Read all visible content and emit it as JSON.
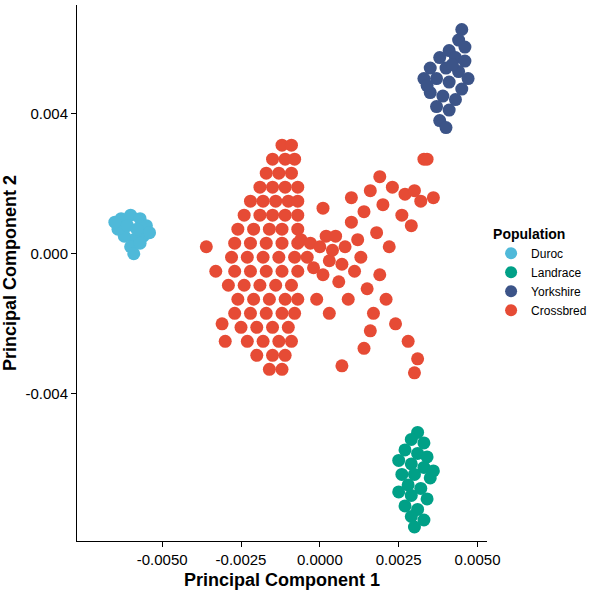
{
  "chart_data": {
    "type": "scatter",
    "x_label": "Principal Component 1",
    "y_label": "Principal Component 2",
    "legend_title": "Population",
    "legend": "right",
    "grid": false,
    "marker": "circle",
    "xlim": [
      -0.0077,
      0.0053
    ],
    "ylim": [
      -0.0082,
      0.0071
    ],
    "xticks": [
      {
        "value": -0.005,
        "label": "-0.0050"
      },
      {
        "value": -0.0025,
        "label": "-0.0025"
      },
      {
        "value": 0,
        "label": "0.0000"
      },
      {
        "value": 0.0025,
        "label": "0.0025"
      },
      {
        "value": 0.005,
        "label": "0.0050"
      }
    ],
    "yticks": [
      {
        "value": -0.004,
        "label": "-0.004"
      },
      {
        "value": 0,
        "label": "0.000"
      },
      {
        "value": 0.004,
        "label": "0.004"
      }
    ],
    "series": [
      {
        "name": "Duroc",
        "color": "#4fb9d9",
        "x": [
          -0.0063,
          -0.006,
          -0.0057,
          -0.0055,
          -0.0056,
          -0.0059,
          -0.0062,
          -0.0064,
          -0.0061,
          -0.0058,
          -0.006,
          -0.0059,
          -0.0054,
          -0.0065,
          -0.0057
        ],
        "y": [
          0.001,
          0.0011,
          0.001,
          0.0008,
          0.0005,
          0.0004,
          0.0005,
          0.0007,
          0.0008,
          0.0007,
          0.0002,
          0.0,
          0.0006,
          0.0009,
          0.0003
        ]
      },
      {
        "name": "Landrace",
        "color": "#00a087",
        "x": [
          0.0031,
          0.0029,
          0.0033,
          0.0027,
          0.0031,
          0.0034,
          0.0025,
          0.0029,
          0.0033,
          0.0026,
          0.003,
          0.0035,
          0.0028,
          0.0032,
          0.0025,
          0.0029,
          0.0034,
          0.0027,
          0.0031,
          0.0029,
          0.0033,
          0.003,
          0.0036
        ],
        "y": [
          -0.0051,
          -0.0053,
          -0.0054,
          -0.0056,
          -0.0057,
          -0.0058,
          -0.0059,
          -0.006,
          -0.0061,
          -0.0063,
          -0.0063,
          -0.0064,
          -0.0066,
          -0.0067,
          -0.0068,
          -0.0069,
          -0.007,
          -0.0072,
          -0.0073,
          -0.0075,
          -0.0076,
          -0.0078,
          -0.0062
        ]
      },
      {
        "name": "Yorkshire",
        "color": "#3c5488",
        "x": [
          0.0045,
          0.0044,
          0.0046,
          0.0041,
          0.0038,
          0.0043,
          0.0046,
          0.0035,
          0.004,
          0.0044,
          0.0047,
          0.0033,
          0.0037,
          0.0041,
          0.0045,
          0.0035,
          0.0039,
          0.0043,
          0.0037,
          0.0041,
          0.0038,
          0.004,
          0.0034,
          0.0042
        ],
        "y": [
          0.0064,
          0.0061,
          0.0059,
          0.0058,
          0.0056,
          0.0056,
          0.0055,
          0.0053,
          0.0053,
          0.0052,
          0.005,
          0.005,
          0.005,
          0.0049,
          0.0047,
          0.0046,
          0.0045,
          0.0044,
          0.0042,
          0.0041,
          0.0038,
          0.0036,
          0.0048,
          0.0054
        ]
      },
      {
        "name": "Crossbred",
        "color": "#e64b35",
        "x": [
          -0.0012,
          -0.0009,
          -0.0015,
          -0.0011,
          -0.0008,
          -0.0017,
          -0.0013,
          -0.0009,
          -0.0019,
          -0.0015,
          -0.0011,
          -0.0007,
          -0.0022,
          -0.0018,
          -0.0014,
          -0.001,
          -0.0007,
          -0.0024,
          -0.0019,
          -0.0015,
          -0.0011,
          -0.0007,
          -0.0026,
          -0.0021,
          -0.0016,
          -0.0012,
          -0.0007,
          -0.0027,
          -0.0022,
          -0.0017,
          -0.0012,
          -0.0007,
          -0.0028,
          -0.0023,
          -0.0018,
          -0.0013,
          -0.0008,
          -0.0027,
          -0.0022,
          -0.0017,
          -0.0012,
          -0.0007,
          -0.0029,
          -0.0024,
          -0.0019,
          -0.0014,
          -0.0009,
          -0.0026,
          -0.0021,
          -0.0016,
          -0.0011,
          -0.0007,
          -0.0027,
          -0.0022,
          -0.0017,
          -0.0012,
          -0.0008,
          -0.0025,
          -0.002,
          -0.0015,
          -0.001,
          -0.0023,
          -0.0018,
          -0.0013,
          -0.0009,
          -0.002,
          -0.0015,
          -0.0011,
          -0.0016,
          -0.0012,
          -0.0036,
          -0.0033,
          -0.0031,
          -0.003,
          -0.0006,
          -0.0004,
          -0.0003,
          -0.0002,
          0.0,
          0.0001,
          0.0002,
          0.0003,
          0.0004,
          0.0005,
          0.0006,
          0.0007,
          0.0008,
          0.0009,
          0.001,
          0.0011,
          0.0012,
          0.0013,
          0.0014,
          0.0015,
          0.0016,
          0.0017,
          0.0018,
          0.0019,
          0.002,
          0.0021,
          0.0022,
          0.0023,
          0.0024,
          0.0026,
          0.0027,
          0.0028,
          0.0029,
          0.003,
          0.0031,
          0.0032,
          0.0033,
          0.0034,
          0.003,
          0.0007,
          0.0014,
          -0.0001,
          0.0003,
          0.001,
          0.0001,
          0.0019,
          0.0036,
          0.0016
        ],
        "y": [
          0.0031,
          0.0031,
          0.0027,
          0.0027,
          0.0027,
          0.0023,
          0.0023,
          0.0023,
          0.0019,
          0.0019,
          0.0019,
          0.0019,
          0.0015,
          0.0015,
          0.0015,
          0.0015,
          0.0015,
          0.0011,
          0.0011,
          0.0011,
          0.0011,
          0.0011,
          0.0007,
          0.0007,
          0.0007,
          0.0007,
          0.0007,
          0.0003,
          0.0003,
          0.0003,
          0.0003,
          0.0003,
          -0.0001,
          -0.0001,
          -0.0001,
          -0.0001,
          -0.0001,
          -0.0005,
          -0.0005,
          -0.0005,
          -0.0005,
          -0.0005,
          -0.0009,
          -0.0009,
          -0.0009,
          -0.0009,
          -0.0009,
          -0.0013,
          -0.0013,
          -0.0013,
          -0.0013,
          -0.0013,
          -0.0017,
          -0.0017,
          -0.0017,
          -0.0017,
          -0.0017,
          -0.0021,
          -0.0021,
          -0.0021,
          -0.0021,
          -0.0025,
          -0.0025,
          -0.0025,
          -0.0025,
          -0.0029,
          -0.0029,
          -0.0029,
          -0.0033,
          -0.0033,
          0.0002,
          -0.0005,
          -0.002,
          -0.0025,
          0.0004,
          -0.0001,
          0.0003,
          -0.0004,
          0.0002,
          -0.0006,
          0.0005,
          -0.0002,
          0.0001,
          0.0005,
          -0.0008,
          -0.0003,
          0.0002,
          -0.0013,
          0.0009,
          -0.0005,
          0.0004,
          -0.0001,
          0.0012,
          -0.001,
          0.0018,
          -0.0017,
          0.0006,
          -0.0006,
          0.0014,
          -0.0013,
          0.0002,
          0.0019,
          -0.002,
          0.0011,
          0.0017,
          -0.0025,
          0.0008,
          0.0018,
          -0.003,
          0.0015,
          0.0027,
          0.0027,
          -0.0034,
          -0.0032,
          -0.0027,
          -0.0013,
          -0.0017,
          0.0016,
          0.0013,
          0.0022,
          0.0016,
          -0.0022
        ]
      }
    ]
  }
}
